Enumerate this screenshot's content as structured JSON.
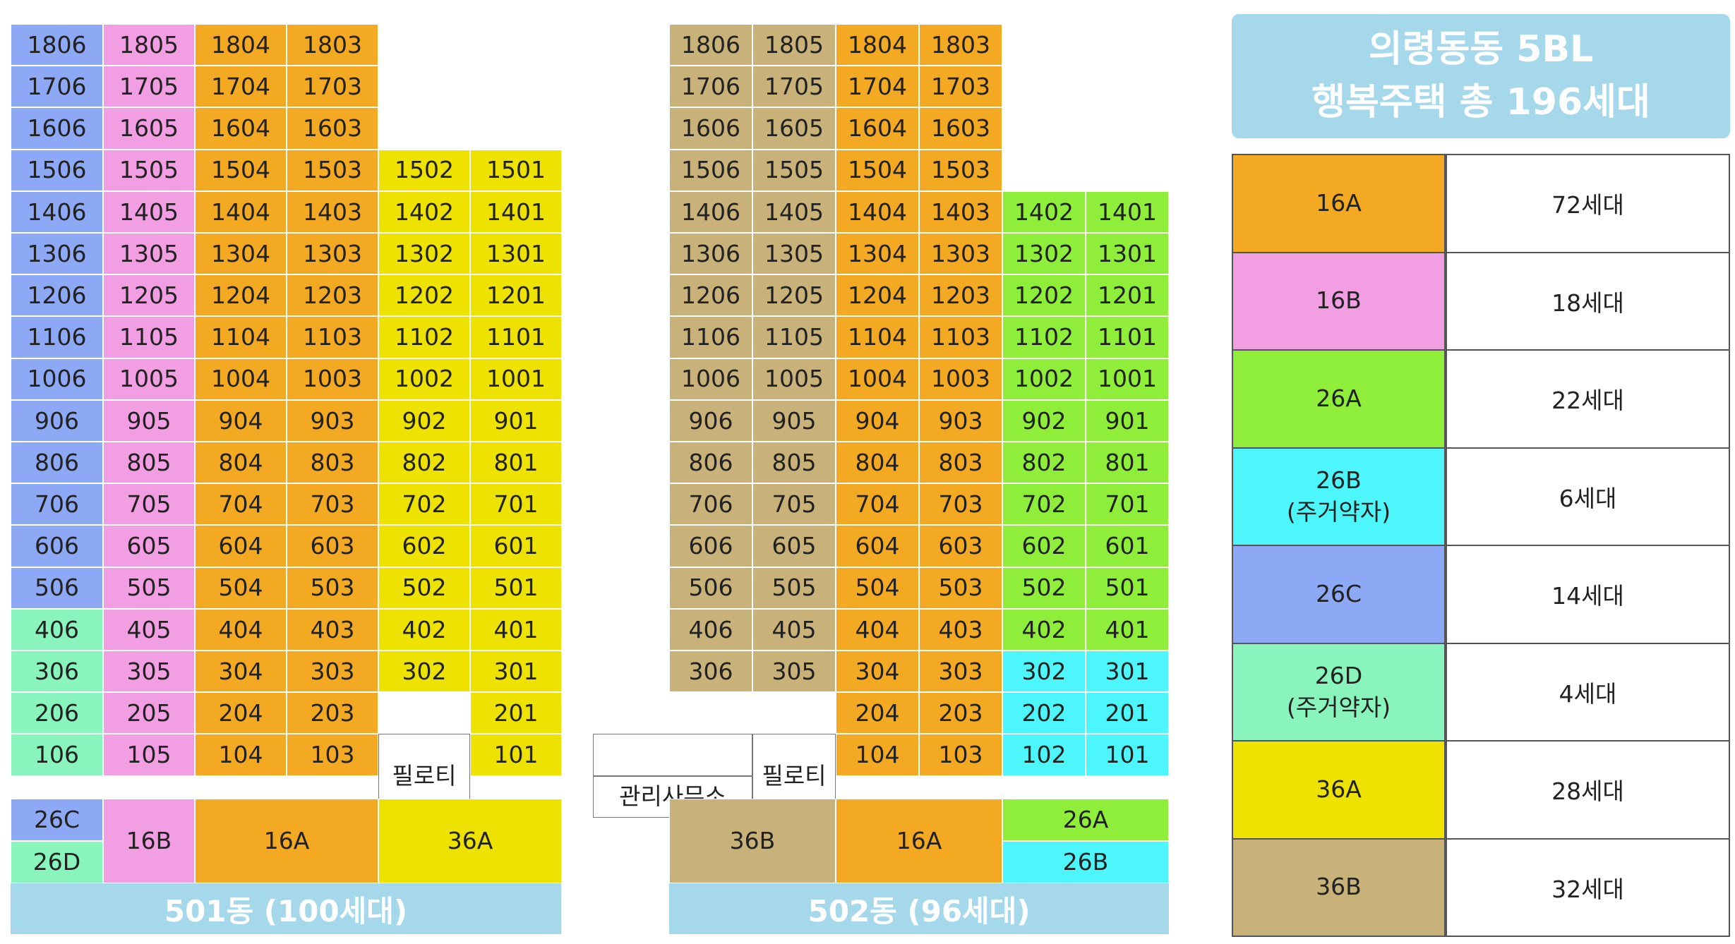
{
  "colors": {
    "16A": "#F3A922",
    "16B": "#F19EE2",
    "26A": "#8FEE3A",
    "26B": "#4DF6FB",
    "26C": "#8DA8F4",
    "26D": "#89F5BC",
    "36A": "#EDE200",
    "36B": "#C9B27A",
    "white": "#FFFFFF",
    "bar": "#A5D8EA"
  },
  "summary": {
    "line1": "의령동동 5BL",
    "line2": "행복주택 총 196세대"
  },
  "legend": [
    {
      "type": "16A",
      "label": "16A",
      "count": "72세대"
    },
    {
      "type": "16B",
      "label": "16B",
      "count": "18세대"
    },
    {
      "type": "26A",
      "label": "26A",
      "count": "22세대"
    },
    {
      "type": "26B",
      "label": "26B\n(주거약자)",
      "count": "6세대"
    },
    {
      "type": "26C",
      "label": "26C",
      "count": "14세대"
    },
    {
      "type": "26D",
      "label": "26D\n(주거약자)",
      "count": "4세대"
    },
    {
      "type": "36A",
      "label": "36A",
      "count": "28세대"
    },
    {
      "type": "36B",
      "label": "36B",
      "count": "32세대"
    }
  ],
  "buildings": [
    {
      "id": "b501",
      "name": "501동 (100세대)",
      "columns": 6,
      "units": [
        [
          "1806",
          "26C"
        ],
        [
          "1805",
          "16B"
        ],
        [
          "1804",
          "16A"
        ],
        [
          "1803",
          "16A"
        ],
        null,
        null,
        [
          "1706",
          "26C"
        ],
        [
          "1705",
          "16B"
        ],
        [
          "1704",
          "16A"
        ],
        [
          "1703",
          "16A"
        ],
        null,
        null,
        [
          "1606",
          "26C"
        ],
        [
          "1605",
          "16B"
        ],
        [
          "1604",
          "16A"
        ],
        [
          "1603",
          "16A"
        ],
        null,
        null,
        [
          "1506",
          "26C"
        ],
        [
          "1505",
          "16B"
        ],
        [
          "1504",
          "16A"
        ],
        [
          "1503",
          "16A"
        ],
        [
          "1502",
          "36A"
        ],
        [
          "1501",
          "36A"
        ],
        [
          "1406",
          "26C"
        ],
        [
          "1405",
          "16B"
        ],
        [
          "1404",
          "16A"
        ],
        [
          "1403",
          "16A"
        ],
        [
          "1402",
          "36A"
        ],
        [
          "1401",
          "36A"
        ],
        [
          "1306",
          "26C"
        ],
        [
          "1305",
          "16B"
        ],
        [
          "1304",
          "16A"
        ],
        [
          "1303",
          "16A"
        ],
        [
          "1302",
          "36A"
        ],
        [
          "1301",
          "36A"
        ],
        [
          "1206",
          "26C"
        ],
        [
          "1205",
          "16B"
        ],
        [
          "1204",
          "16A"
        ],
        [
          "1203",
          "16A"
        ],
        [
          "1202",
          "36A"
        ],
        [
          "1201",
          "36A"
        ],
        [
          "1106",
          "26C"
        ],
        [
          "1105",
          "16B"
        ],
        [
          "1104",
          "16A"
        ],
        [
          "1103",
          "16A"
        ],
        [
          "1102",
          "36A"
        ],
        [
          "1101",
          "36A"
        ],
        [
          "1006",
          "26C"
        ],
        [
          "1005",
          "16B"
        ],
        [
          "1004",
          "16A"
        ],
        [
          "1003",
          "16A"
        ],
        [
          "1002",
          "36A"
        ],
        [
          "1001",
          "36A"
        ],
        [
          "906",
          "26C"
        ],
        [
          "905",
          "16B"
        ],
        [
          "904",
          "16A"
        ],
        [
          "903",
          "16A"
        ],
        [
          "902",
          "36A"
        ],
        [
          "901",
          "36A"
        ],
        [
          "806",
          "26C"
        ],
        [
          "805",
          "16B"
        ],
        [
          "804",
          "16A"
        ],
        [
          "803",
          "16A"
        ],
        [
          "802",
          "36A"
        ],
        [
          "801",
          "36A"
        ],
        [
          "706",
          "26C"
        ],
        [
          "705",
          "16B"
        ],
        [
          "704",
          "16A"
        ],
        [
          "703",
          "16A"
        ],
        [
          "702",
          "36A"
        ],
        [
          "701",
          "36A"
        ],
        [
          "606",
          "26C"
        ],
        [
          "605",
          "16B"
        ],
        [
          "604",
          "16A"
        ],
        [
          "603",
          "16A"
        ],
        [
          "602",
          "36A"
        ],
        [
          "601",
          "36A"
        ],
        [
          "506",
          "26C"
        ],
        [
          "505",
          "16B"
        ],
        [
          "504",
          "16A"
        ],
        [
          "503",
          "16A"
        ],
        [
          "502",
          "36A"
        ],
        [
          "501",
          "36A"
        ],
        [
          "406",
          "26D"
        ],
        [
          "405",
          "16B"
        ],
        [
          "404",
          "16A"
        ],
        [
          "403",
          "16A"
        ],
        [
          "402",
          "36A"
        ],
        [
          "401",
          "36A"
        ],
        [
          "306",
          "26D"
        ],
        [
          "305",
          "16B"
        ],
        [
          "304",
          "16A"
        ],
        [
          "303",
          "16A"
        ],
        [
          "302",
          "36A"
        ],
        [
          "301",
          "36A"
        ],
        [
          "206",
          "26D"
        ],
        [
          "205",
          "16B"
        ],
        [
          "204",
          "16A"
        ],
        [
          "203",
          "16A"
        ],
        null,
        [
          "201",
          "36A"
        ],
        [
          "106",
          "26D"
        ],
        [
          "105",
          "16B"
        ],
        [
          "104",
          "16A"
        ],
        [
          "103",
          "16A"
        ],
        null,
        [
          "101",
          "36A"
        ]
      ],
      "special": [
        {
          "text": "필로티",
          "rows": [
            17,
            18
          ],
          "col": 4
        }
      ],
      "typeBar": [
        {
          "label": "26C",
          "type": "26C",
          "col": 0,
          "span": 1,
          "half": "top"
        },
        {
          "label": "26D",
          "type": "26D",
          "col": 0,
          "span": 1,
          "half": "bottom"
        },
        {
          "label": "16B",
          "type": "16B",
          "col": 1,
          "span": 1,
          "half": "full"
        },
        {
          "label": "16A",
          "type": "16A",
          "col": 2,
          "span": 2,
          "half": "full"
        },
        {
          "label": "36A",
          "type": "36A",
          "col": 4,
          "span": 2,
          "half": "full"
        }
      ]
    },
    {
      "id": "b502",
      "name": "502동 (96세대)",
      "columns": 6,
      "units": [
        [
          "1806",
          "36B"
        ],
        [
          "1805",
          "36B"
        ],
        [
          "1804",
          "16A"
        ],
        [
          "1803",
          "16A"
        ],
        null,
        null,
        [
          "1706",
          "36B"
        ],
        [
          "1705",
          "36B"
        ],
        [
          "1704",
          "16A"
        ],
        [
          "1703",
          "16A"
        ],
        null,
        null,
        [
          "1606",
          "36B"
        ],
        [
          "1605",
          "36B"
        ],
        [
          "1604",
          "16A"
        ],
        [
          "1603",
          "16A"
        ],
        null,
        null,
        [
          "1506",
          "36B"
        ],
        [
          "1505",
          "36B"
        ],
        [
          "1504",
          "16A"
        ],
        [
          "1503",
          "16A"
        ],
        null,
        null,
        [
          "1406",
          "36B"
        ],
        [
          "1405",
          "36B"
        ],
        [
          "1404",
          "16A"
        ],
        [
          "1403",
          "16A"
        ],
        [
          "1402",
          "26A"
        ],
        [
          "1401",
          "26A"
        ],
        [
          "1306",
          "36B"
        ],
        [
          "1305",
          "36B"
        ],
        [
          "1304",
          "16A"
        ],
        [
          "1303",
          "16A"
        ],
        [
          "1302",
          "26A"
        ],
        [
          "1301",
          "26A"
        ],
        [
          "1206",
          "36B"
        ],
        [
          "1205",
          "36B"
        ],
        [
          "1204",
          "16A"
        ],
        [
          "1203",
          "16A"
        ],
        [
          "1202",
          "26A"
        ],
        [
          "1201",
          "26A"
        ],
        [
          "1106",
          "36B"
        ],
        [
          "1105",
          "36B"
        ],
        [
          "1104",
          "16A"
        ],
        [
          "1103",
          "16A"
        ],
        [
          "1102",
          "26A"
        ],
        [
          "1101",
          "26A"
        ],
        [
          "1006",
          "36B"
        ],
        [
          "1005",
          "36B"
        ],
        [
          "1004",
          "16A"
        ],
        [
          "1003",
          "16A"
        ],
        [
          "1002",
          "26A"
        ],
        [
          "1001",
          "26A"
        ],
        [
          "906",
          "36B"
        ],
        [
          "905",
          "36B"
        ],
        [
          "904",
          "16A"
        ],
        [
          "903",
          "16A"
        ],
        [
          "902",
          "26A"
        ],
        [
          "901",
          "26A"
        ],
        [
          "806",
          "36B"
        ],
        [
          "805",
          "36B"
        ],
        [
          "804",
          "16A"
        ],
        [
          "803",
          "16A"
        ],
        [
          "802",
          "26A"
        ],
        [
          "801",
          "26A"
        ],
        [
          "706",
          "36B"
        ],
        [
          "705",
          "36B"
        ],
        [
          "704",
          "16A"
        ],
        [
          "703",
          "16A"
        ],
        [
          "702",
          "26A"
        ],
        [
          "701",
          "26A"
        ],
        [
          "606",
          "36B"
        ],
        [
          "605",
          "36B"
        ],
        [
          "604",
          "16A"
        ],
        [
          "603",
          "16A"
        ],
        [
          "602",
          "26A"
        ],
        [
          "601",
          "26A"
        ],
        [
          "506",
          "36B"
        ],
        [
          "505",
          "36B"
        ],
        [
          "504",
          "16A"
        ],
        [
          "503",
          "16A"
        ],
        [
          "502",
          "26A"
        ],
        [
          "501",
          "26A"
        ],
        [
          "406",
          "36B"
        ],
        [
          "405",
          "36B"
        ],
        [
          "404",
          "16A"
        ],
        [
          "403",
          "16A"
        ],
        [
          "402",
          "26A"
        ],
        [
          "401",
          "26A"
        ],
        [
          "306",
          "36B"
        ],
        [
          "305",
          "36B"
        ],
        [
          "304",
          "16A"
        ],
        [
          "303",
          "16A"
        ],
        [
          "302",
          "26B"
        ],
        [
          "301",
          "26B"
        ],
        null,
        null,
        [
          "204",
          "16A"
        ],
        [
          "203",
          "16A"
        ],
        [
          "202",
          "26B"
        ],
        [
          "201",
          "26B"
        ],
        null,
        null,
        [
          "104",
          "16A"
        ],
        [
          "103",
          "16A"
        ],
        [
          "102",
          "26B"
        ],
        [
          "101",
          "26B"
        ]
      ],
      "special": [
        {
          "text": "",
          "rows": [
            17
          ],
          "col": -1
        },
        {
          "text": "관리사무소",
          "rows": [
            18
          ],
          "col": -1
        },
        {
          "text": "필로티",
          "rows": [
            17,
            18
          ],
          "col": 1
        }
      ],
      "typeBar": [
        {
          "label": "36B",
          "type": "36B",
          "col": 0,
          "span": 2,
          "half": "full"
        },
        {
          "label": "16A",
          "type": "16A",
          "col": 2,
          "span": 2,
          "half": "full"
        },
        {
          "label": "26A",
          "type": "26A",
          "col": 4,
          "span": 2,
          "half": "top"
        },
        {
          "label": "26B",
          "type": "26B",
          "col": 4,
          "span": 2,
          "half": "bottom"
        }
      ]
    }
  ]
}
